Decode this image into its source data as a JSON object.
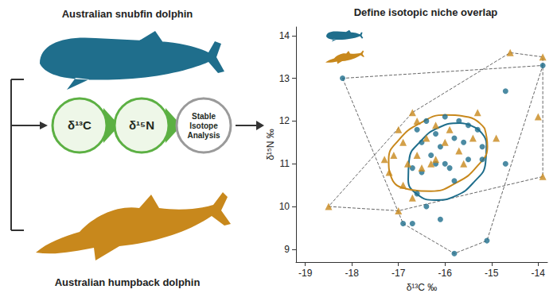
{
  "chart_data": {
    "type": "scatter",
    "title": "Define isotopic niche overlap",
    "x_label": "δ¹³C ‰",
    "y_label": "δ¹⁵N ‰",
    "xlim": [
      -19.2,
      -13.8
    ],
    "xticks": [
      -19,
      -18,
      -17,
      -16,
      -15,
      -14
    ],
    "ylim": [
      8.7,
      14.2
    ],
    "yticks": [
      9,
      10,
      11,
      12,
      13,
      14
    ],
    "grid": false,
    "series": [
      {
        "name": "Australian snubfin dolphin",
        "color": "#1f6e8c",
        "marker": "circle",
        "x": [
          -18.2,
          -13.9,
          -14.7,
          -16.4,
          -16.0,
          -15.7,
          -15.5,
          -16.6,
          -16.2,
          -15.8,
          -15.3,
          -15.2,
          -16.5,
          -16.1,
          -15.6,
          -16.3,
          -16.0,
          -15.9,
          -16.2,
          -15.5,
          -15.2,
          -14.7,
          -16.7,
          -16.5,
          -15.8,
          -16.6,
          -16.4,
          -16.1,
          -16.9,
          -16.7,
          -15.1,
          -15.8
        ],
        "y": [
          13.0,
          13.3,
          12.7,
          12.0,
          12.1,
          12.0,
          11.9,
          11.8,
          11.7,
          11.6,
          11.8,
          11.4,
          11.5,
          11.4,
          11.5,
          11.2,
          11.0,
          10.9,
          11.0,
          11.1,
          11.1,
          11.0,
          10.9,
          10.8,
          10.6,
          10.3,
          10.0,
          9.7,
          9.6,
          9.6,
          9.2,
          8.9
        ],
        "ellipse": {
          "x": [
            -15.31,
            -15.68,
            -16.13,
            -16.52,
            -16.77,
            -16.79,
            -16.59,
            -16.22,
            -15.77,
            -15.38,
            -15.13,
            -15.11
          ],
          "y": [
            11.82,
            11.95,
            11.85,
            11.53,
            11.09,
            10.63,
            10.28,
            10.15,
            10.25,
            10.57,
            11.02,
            11.47
          ]
        }
      },
      {
        "name": "Australian humpback dolphin",
        "color": "#c8881c",
        "marker": "triangle",
        "x": [
          -18.5,
          -14.6,
          -13.9,
          -13.9,
          -14.0,
          -16.7,
          -17.0,
          -17.3,
          -17.2,
          -16.9,
          -16.8,
          -16.6,
          -16.4,
          -16.2,
          -15.9,
          -16.0,
          -16.5,
          -16.3,
          -16.2,
          -15.7,
          -15.4,
          -15.6,
          -17.1,
          -16.9,
          -16.7,
          -17.0,
          -16.6,
          -15.3,
          -14.9
        ],
        "y": [
          10.0,
          13.6,
          13.5,
          10.7,
          12.1,
          12.2,
          11.8,
          11.1,
          10.8,
          11.5,
          11.0,
          11.2,
          11.6,
          11.9,
          11.8,
          11.5,
          10.9,
          11.0,
          11.1,
          11.3,
          11.6,
          11.0,
          11.2,
          10.5,
          10.2,
          9.9,
          12.0,
          12.2,
          11.6
        ],
        "ellipse": {
          "x": [
            -15.15,
            -15.49,
            -16.0,
            -16.55,
            -16.99,
            -17.21,
            -17.15,
            -16.81,
            -16.3,
            -15.75,
            -15.31,
            -15.09
          ],
          "y": [
            11.83,
            12.09,
            12.14,
            11.94,
            11.56,
            11.1,
            10.67,
            10.41,
            10.36,
            10.56,
            10.94,
            11.4
          ]
        }
      }
    ]
  },
  "diagram": {
    "steps": [
      "δ¹³C",
      "δ¹⁵N",
      "Stable Isotope Analysis"
    ]
  }
}
